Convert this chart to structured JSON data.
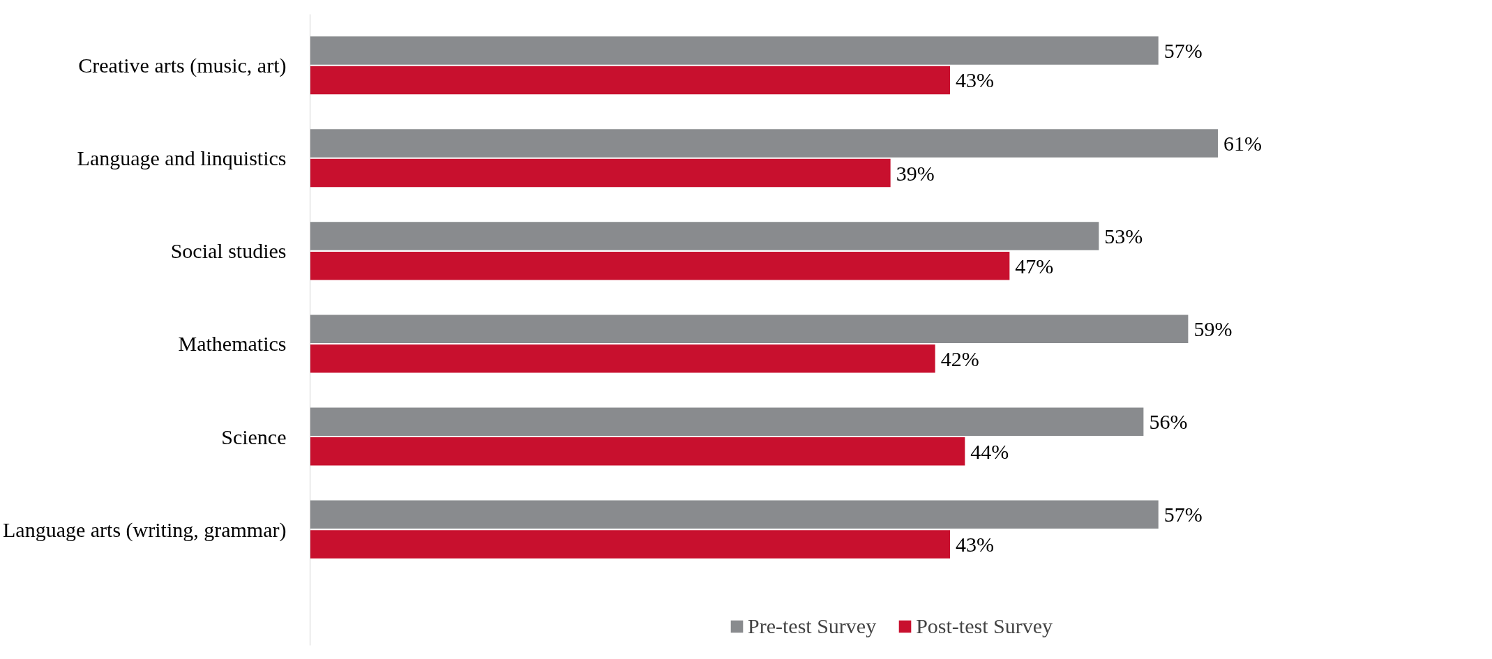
{
  "chart_data": {
    "type": "bar",
    "orientation": "horizontal",
    "categories": [
      "Creative arts (music, art)",
      "Language and linquistics",
      "Social studies",
      "Mathematics",
      "Science",
      "Language arts (writing, grammar)"
    ],
    "series": [
      {
        "name": "Pre-test Survey",
        "color": "#898b8e",
        "values": [
          57,
          61,
          53,
          59,
          56,
          57
        ],
        "value_labels": [
          "57%",
          "61%",
          "53%",
          "59%",
          "56%",
          "57%"
        ]
      },
      {
        "name": "Post-test Survey",
        "color": "#c8102e",
        "values": [
          43,
          39,
          47,
          42,
          44,
          43
        ],
        "value_labels": [
          "43%",
          "39%",
          "47%",
          "42%",
          "44%",
          "43%"
        ]
      }
    ],
    "grid": false,
    "legend": "bottom"
  }
}
